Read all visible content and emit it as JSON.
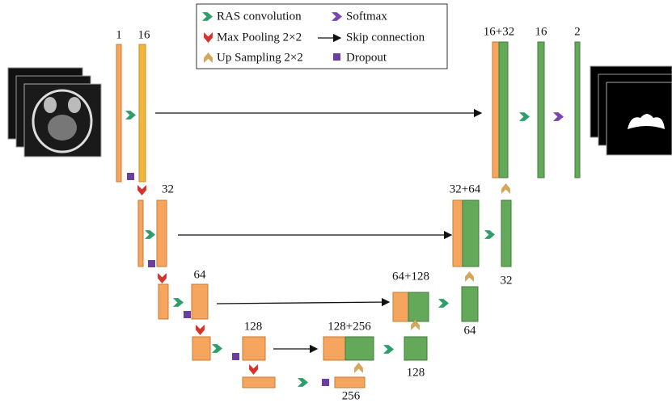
{
  "legend": [
    "RAS convolution",
    "Max Pooling 2×2",
    "Up Sampling 2×2",
    "Softmax",
    "Skip connection",
    "Dropout"
  ],
  "channels": [
    "1",
    "16",
    "16+32",
    "16",
    "2",
    "32",
    "32+64",
    "32",
    "64",
    "64+128",
    "64",
    "128",
    "128+256",
    "128",
    "256"
  ]
}
